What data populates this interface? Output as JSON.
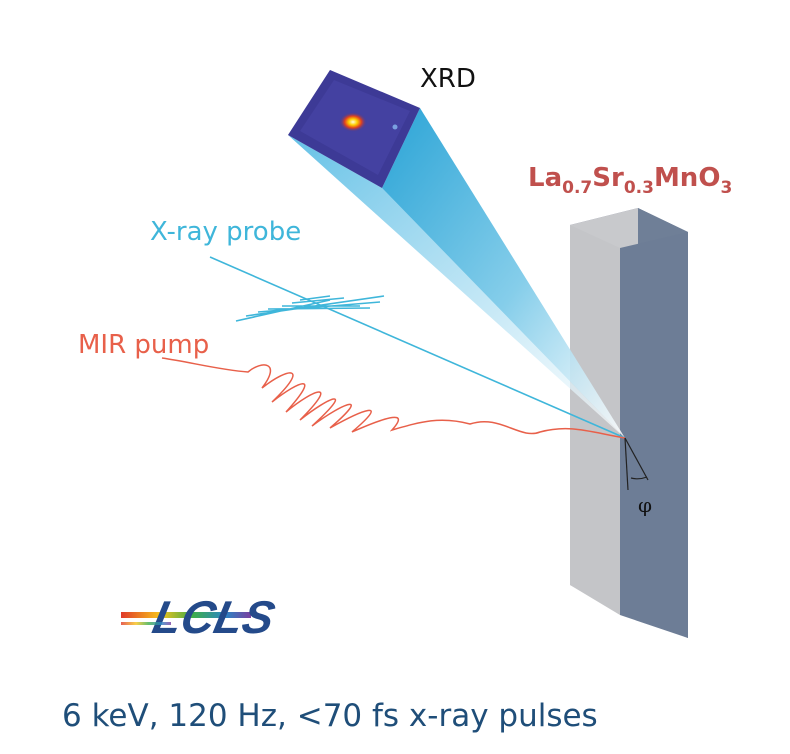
{
  "labels": {
    "xrd": "XRD",
    "xray_probe": "X-ray probe",
    "mir_pump": "MIR pump",
    "angle": "φ",
    "logo": "LCLS"
  },
  "formula": {
    "el1": "La",
    "sub1": "0.7",
    "el2": "Sr",
    "sub2": "0.3",
    "el3": "MnO",
    "sub3": "3"
  },
  "caption": "6 keV, 120 Hz, <70 fs x-ray pulses",
  "colors": {
    "probe": "#3fb6da",
    "pump": "#e8604a",
    "formula": "#c0504d",
    "caption": "#1f4e79",
    "sample_face": "#c8c9cc",
    "sample_side": "#6f7f97",
    "detector": "#3b3b9a"
  }
}
